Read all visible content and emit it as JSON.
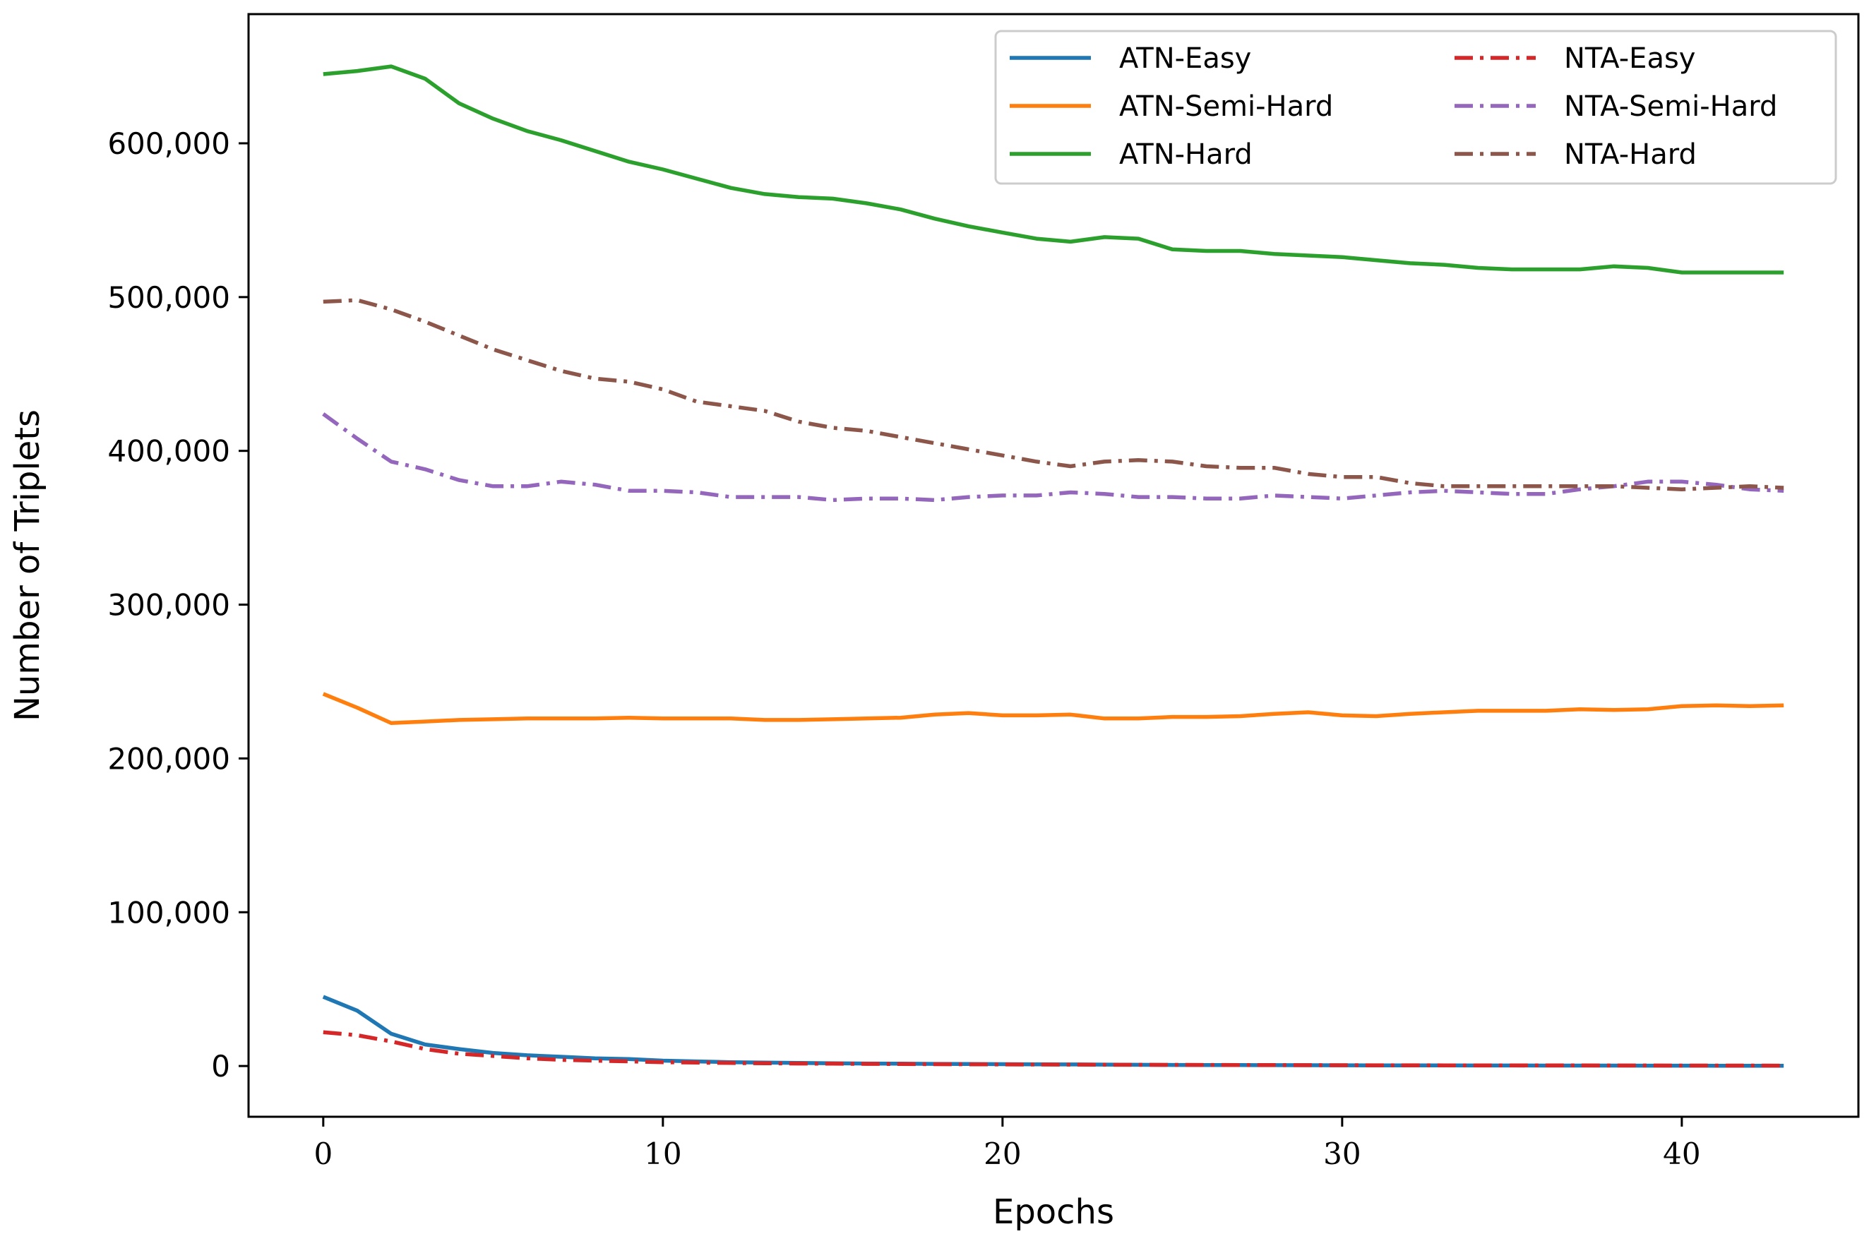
{
  "chart_data": {
    "type": "line",
    "title": "",
    "xlabel": "Epochs",
    "ylabel": "Number of Triplets",
    "xlim": [
      -2.2,
      45.2
    ],
    "ylim": [
      -33000,
      684000
    ],
    "xticks": [
      0,
      10,
      20,
      30,
      40
    ],
    "xtick_labels": [
      "0",
      "10",
      "20",
      "30",
      "40"
    ],
    "yticks": [
      0,
      100000,
      200000,
      300000,
      400000,
      500000,
      600000
    ],
    "ytick_labels": [
      "0",
      "100,000",
      "200,000",
      "300,000",
      "400,000",
      "500,000",
      "600,000"
    ],
    "grid": false,
    "legend_position": "top-right",
    "x": [
      0,
      1,
      2,
      3,
      4,
      5,
      6,
      7,
      8,
      9,
      10,
      11,
      12,
      13,
      14,
      15,
      16,
      17,
      18,
      19,
      20,
      21,
      22,
      23,
      24,
      25,
      26,
      27,
      28,
      29,
      30,
      31,
      32,
      33,
      34,
      35,
      36,
      37,
      38,
      39,
      40,
      41,
      42,
      43
    ],
    "series": [
      {
        "name": "ATN-Easy",
        "color": "#1f77b4",
        "style": "solid",
        "values": [
          45000,
          36000,
          21000,
          14000,
          11000,
          8500,
          7000,
          6000,
          5000,
          4500,
          3500,
          3000,
          2500,
          2200,
          2000,
          1800,
          1600,
          1500,
          1400,
          1300,
          1200,
          1100,
          1000,
          900,
          800,
          700,
          650,
          600,
          550,
          500,
          450,
          400,
          380,
          360,
          340,
          320,
          300,
          280,
          260,
          240,
          220,
          200,
          180,
          150
        ]
      },
      {
        "name": "ATN-Semi-Hard",
        "color": "#ff7f0e",
        "style": "solid",
        "values": [
          242000,
          233000,
          223000,
          224000,
          225000,
          225500,
          226000,
          226000,
          226000,
          226500,
          226000,
          226000,
          226000,
          225000,
          225000,
          225500,
          226000,
          226500,
          228500,
          229500,
          228000,
          228000,
          228500,
          226000,
          226000,
          227000,
          227000,
          227500,
          229000,
          230000,
          228000,
          227500,
          229000,
          230000,
          231000,
          231000,
          231000,
          232000,
          231500,
          232000,
          234000,
          234500,
          234000,
          234500
        ]
      },
      {
        "name": "ATN-Hard",
        "color": "#2ca02c",
        "style": "solid",
        "values": [
          645000,
          647000,
          650000,
          642000,
          626000,
          616000,
          608000,
          602000,
          595000,
          588000,
          583000,
          577000,
          571000,
          567000,
          565000,
          564000,
          561000,
          557000,
          551000,
          546000,
          542000,
          538000,
          536000,
          539000,
          538000,
          531000,
          530000,
          530000,
          528000,
          527000,
          526000,
          524000,
          522000,
          521000,
          519000,
          518000,
          518000,
          518000,
          520000,
          519000,
          516000,
          516000,
          516000,
          516000
        ]
      },
      {
        "name": "NTA-Easy",
        "color": "#d62728",
        "style": "dashdot",
        "values": [
          22000,
          20000,
          16000,
          11000,
          8000,
          6500,
          5000,
          4000,
          3500,
          3000,
          2500,
          2200,
          2000,
          1800,
          1600,
          1500,
          1400,
          1300,
          1200,
          1100,
          1000,
          950,
          900,
          850,
          800,
          750,
          700,
          650,
          600,
          550,
          500,
          480,
          460,
          440,
          420,
          400,
          380,
          360,
          340,
          320,
          300,
          280,
          260,
          240
        ]
      },
      {
        "name": "NTA-Semi-Hard",
        "color": "#9467bd",
        "style": "dashdot",
        "values": [
          424000,
          408000,
          393000,
          388000,
          381000,
          377000,
          377000,
          380000,
          378000,
          374000,
          374000,
          373000,
          370000,
          370000,
          370000,
          368000,
          369000,
          369000,
          368000,
          370000,
          371000,
          371000,
          373000,
          372000,
          370000,
          370000,
          369000,
          369000,
          371000,
          370000,
          369000,
          371000,
          373000,
          374000,
          373000,
          372000,
          372000,
          375000,
          377000,
          380000,
          380000,
          378000,
          375000,
          374000
        ]
      },
      {
        "name": "NTA-Hard",
        "color": "#8c564b",
        "style": "dashdot",
        "values": [
          497000,
          498000,
          492000,
          484000,
          475000,
          466000,
          459000,
          452000,
          447000,
          445000,
          440000,
          432000,
          429000,
          426000,
          419000,
          415000,
          413000,
          409000,
          405000,
          401000,
          397000,
          393000,
          390000,
          393000,
          394000,
          393000,
          390000,
          389000,
          389000,
          385000,
          383000,
          383000,
          379000,
          377000,
          377000,
          377000,
          377000,
          377000,
          377000,
          376000,
          375000,
          376000,
          377000,
          376000
        ]
      }
    ]
  }
}
